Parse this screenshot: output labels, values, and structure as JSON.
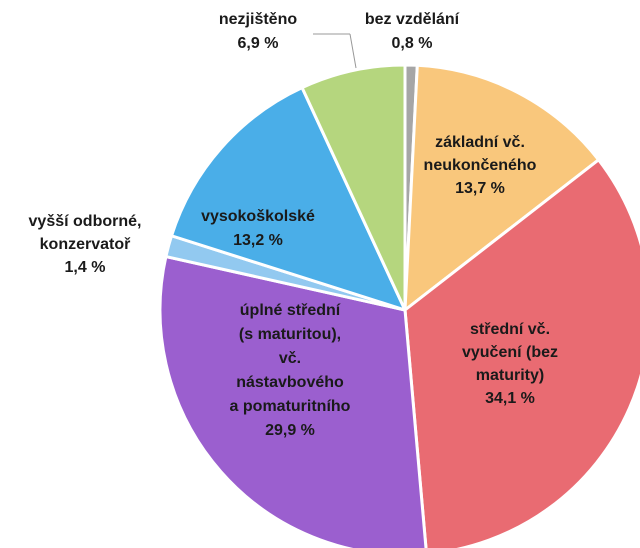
{
  "chart_data": {
    "type": "pie",
    "categories": [
      [
        "bez vzdělání"
      ],
      [
        "základní vč.",
        "neukončeného"
      ],
      [
        "střední vč.",
        "vyučení (bez",
        "maturity)"
      ],
      [
        "úplné střední",
        "(s maturitou),",
        "vč.",
        "nástavbového",
        "a pomaturitního"
      ],
      [
        "vyšší odborné,",
        "konzervatoř"
      ],
      [
        "vysokoškolské"
      ],
      [
        "nezjištěno"
      ]
    ],
    "values": [
      0.8,
      13.7,
      34.1,
      29.9,
      1.4,
      13.2,
      6.9
    ],
    "value_labels": [
      "0,8 %",
      "13,7 %",
      "34,1 %",
      "29,9 %",
      "1,4 %",
      "13,2 %",
      "6,9 %"
    ],
    "colors": [
      "#a6a6a6",
      "#f9c77c",
      "#e96b72",
      "#9b5fcf",
      "#92c9f0",
      "#4aaee8",
      "#b5d67e"
    ]
  }
}
